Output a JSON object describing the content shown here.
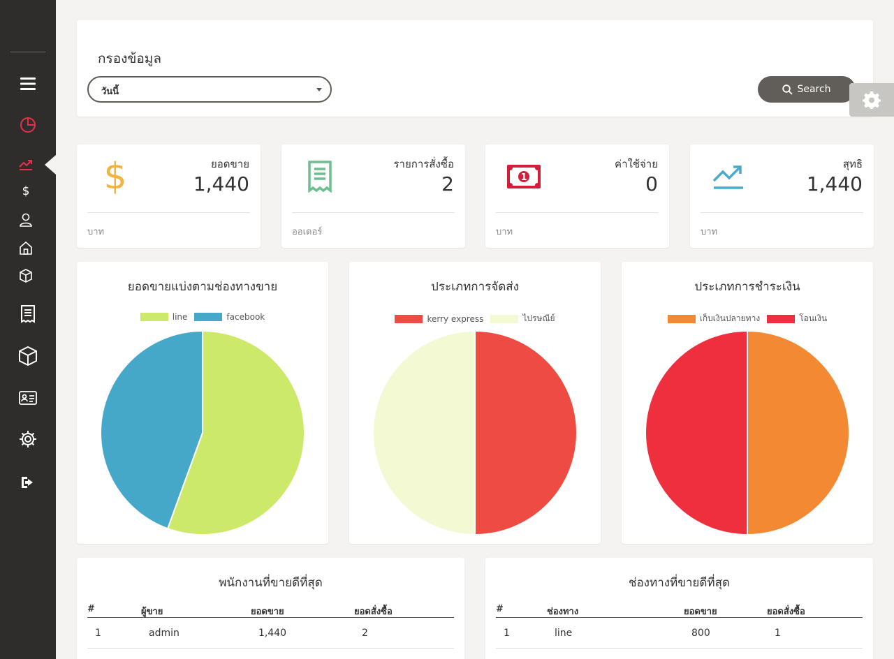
{
  "filter": {
    "title": "กรองข้อมูล",
    "select_value": "วันนี้",
    "search_label": "Search"
  },
  "sidebar": {
    "items": [
      {
        "icon": "menu-icon"
      },
      {
        "icon": "pie-chart-icon"
      },
      {
        "icon": "trending-up-icon",
        "active": true
      },
      {
        "icon": "dollar-icon"
      },
      {
        "icon": "user-icon"
      },
      {
        "icon": "home-icon"
      },
      {
        "icon": "box-icon"
      },
      {
        "icon": "receipt-icon"
      },
      {
        "icon": "package-icon"
      },
      {
        "icon": "id-card-icon"
      },
      {
        "icon": "gear-icon"
      },
      {
        "icon": "logout-icon"
      }
    ]
  },
  "stats": [
    {
      "label": "ยอดขาย",
      "value": "1,440",
      "unit": "บาท",
      "icon": "dollar-icon",
      "color": "#f3b43f"
    },
    {
      "label": "รายการสั่งซื้อ",
      "value": "2",
      "unit": "ออเดอร์",
      "icon": "receipt-icon",
      "color": "#6dbf8f"
    },
    {
      "label": "ค่าใช้จ่าย",
      "value": "0",
      "unit": "บาท",
      "icon": "banknote-icon",
      "color": "#d11f3b"
    },
    {
      "label": "สุทธิ",
      "value": "1,440",
      "unit": "บาท",
      "icon": "trending-up-icon",
      "color": "#4aaacb"
    }
  ],
  "charts": {
    "channel": {
      "title": "ยอดขายแบ่งตามช่องทางขาย"
    },
    "shipping": {
      "title": "ประเภทการจัดส่ง"
    },
    "payment": {
      "title": "ประเภทการชำระเงิน"
    }
  },
  "chart_data": [
    {
      "type": "pie",
      "title": "ยอดขายแบ่งตามช่องทางขาย",
      "labels": [
        "line",
        "facebook"
      ],
      "values": [
        800,
        640
      ],
      "colors": [
        "#cde96a",
        "#46a8c9"
      ],
      "legend": "top"
    },
    {
      "type": "pie",
      "title": "ประเภทการจัดส่ง",
      "labels": [
        "kerry express",
        "ไปรษณีย์"
      ],
      "values": [
        1,
        1
      ],
      "colors": [
        "#ee4b43",
        "#f3f9d3"
      ],
      "legend": "top"
    },
    {
      "type": "pie",
      "title": "ประเภทการชำระเงิน",
      "labels": [
        "เก็บเงินปลายทาง",
        "โอนเงิน"
      ],
      "values": [
        1,
        1
      ],
      "colors": [
        "#f38a33",
        "#ee2f3e"
      ],
      "legend": "top"
    }
  ],
  "tables": {
    "staff": {
      "title": "พนักงานที่ขายดีที่สุด",
      "headers": [
        "#",
        "ผู้ขาย",
        "ยอดขาย",
        "ยอดสั่งซื้อ"
      ],
      "rows": [
        [
          "1",
          "admin",
          "1,440",
          "2"
        ]
      ]
    },
    "channels": {
      "title": "ช่องทางที่ขายดีที่สุด",
      "headers": [
        "#",
        "ช่องทาง",
        "ยอดขาย",
        "ยอดสั่งซื้อ"
      ],
      "rows": [
        [
          "1",
          "line",
          "800",
          "1"
        ]
      ]
    }
  }
}
